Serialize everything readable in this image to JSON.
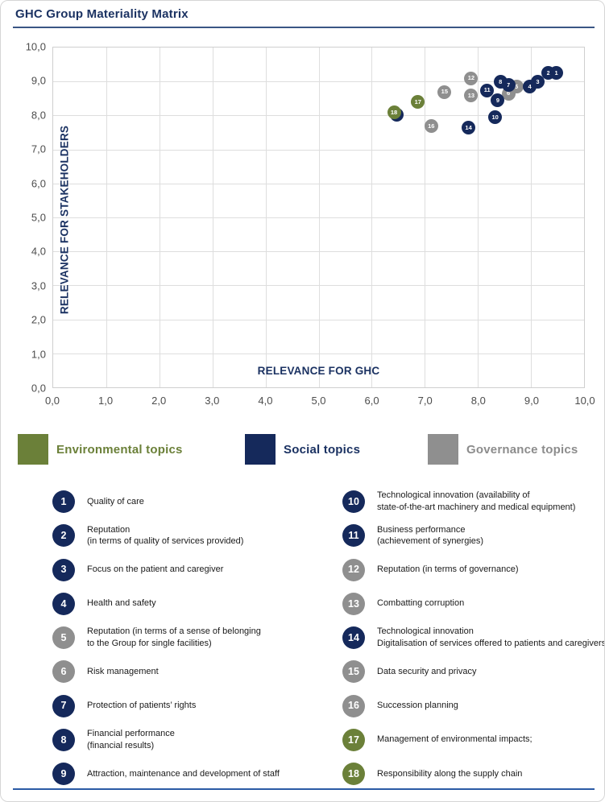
{
  "title": "GHC Group Materiality Matrix",
  "colors": {
    "environmental": "#6B8039",
    "social": "#15295B",
    "governance": "#8F8F8F",
    "legend_text": {
      "environmental": "#6B8039",
      "social": "#1B3262",
      "governance": "#8C8C8C"
    },
    "axis_title_text": "#1B3262",
    "tick_text": "#4D4D4D",
    "title_rule": "#3A5684",
    "bottom_rule": "#2B5AA5"
  },
  "chart_data": {
    "type": "scatter",
    "title": "GHC Group Materiality Matrix",
    "xlabel": "RELEVANCE FOR GHC",
    "ylabel": "RELEVANCE FOR STAKEHOLDERS",
    "xlim": [
      0,
      10
    ],
    "ylim": [
      0,
      10
    ],
    "grid": true,
    "tick_interval": 1,
    "x_tick_labels": [
      "0,0",
      "1,0",
      "2,0",
      "3,0",
      "4,0",
      "5,0",
      "6,0",
      "7,0",
      "8,0",
      "9,0",
      "10,0"
    ],
    "y_tick_labels": [
      "0,0",
      "1,0",
      "2,0",
      "3,0",
      "4,0",
      "5,0",
      "6,0",
      "7,0",
      "8,0",
      "9,0",
      "10,0"
    ],
    "series": [
      {
        "name": "Governance topics",
        "category": "governance",
        "points": [
          {
            "id": 16,
            "x": 7.1,
            "y": 7.7
          },
          {
            "id": 15,
            "x": 7.35,
            "y": 8.7
          },
          {
            "id": 13,
            "x": 7.85,
            "y": 8.6
          },
          {
            "id": 12,
            "x": 7.85,
            "y": 9.1
          },
          {
            "id": 6,
            "x": 8.55,
            "y": 8.65
          },
          {
            "id": 5,
            "x": 8.7,
            "y": 8.85
          }
        ]
      },
      {
        "name": "Social topics",
        "category": "social",
        "points": [
          {
            "id": 14,
            "x": 7.8,
            "y": 7.65
          },
          {
            "id": 11,
            "x": 8.15,
            "y": 8.75
          },
          {
            "id": 10,
            "x": 8.3,
            "y": 7.95
          },
          {
            "id": 9,
            "x": 8.35,
            "y": 8.45
          },
          {
            "id": 7,
            "x": 8.55,
            "y": 8.9
          },
          {
            "id": 8,
            "x": 8.4,
            "y": 9.0
          },
          {
            "id": 4,
            "x": 8.95,
            "y": 8.85
          },
          {
            "id": 3,
            "x": 9.1,
            "y": 9.0
          },
          {
            "id": 2,
            "x": 9.3,
            "y": 9.25
          },
          {
            "id": 1,
            "x": 9.45,
            "y": 9.25
          },
          {
            "id": "",
            "x": 6.45,
            "y": 8.03,
            "note": "unlabeled marker partially hidden behind point 18"
          }
        ]
      },
      {
        "name": "Environmental topics",
        "category": "environmental",
        "points": [
          {
            "id": 18,
            "x": 6.4,
            "y": 8.1
          },
          {
            "id": 17,
            "x": 6.85,
            "y": 8.4
          }
        ]
      }
    ]
  },
  "legend": [
    {
      "label": "Environmental topics",
      "category": "environmental"
    },
    {
      "label": "Social topics",
      "category": "social"
    },
    {
      "label": "Governance topics",
      "category": "governance"
    }
  ],
  "topics": {
    "left": [
      {
        "id": 1,
        "category": "social",
        "lines": [
          "Quality of care"
        ]
      },
      {
        "id": 2,
        "category": "social",
        "lines": [
          "Reputation",
          "(in terms of quality of services provided)"
        ]
      },
      {
        "id": 3,
        "category": "social",
        "lines": [
          "Focus on the patient and caregiver"
        ]
      },
      {
        "id": 4,
        "category": "social",
        "lines": [
          "Health and safety"
        ]
      },
      {
        "id": 5,
        "category": "governance",
        "lines": [
          "Reputation (in terms of a sense of belonging",
          "to the Group for single facilities)"
        ]
      },
      {
        "id": 6,
        "category": "governance",
        "lines": [
          "Risk management"
        ]
      },
      {
        "id": 7,
        "category": "social",
        "lines": [
          "Protection of patients’ rights"
        ]
      },
      {
        "id": 8,
        "category": "social",
        "lines": [
          "Financial performance",
          "(financial results)"
        ]
      },
      {
        "id": 9,
        "category": "social",
        "lines": [
          "Attraction, maintenance and development of staff"
        ]
      }
    ],
    "right": [
      {
        "id": 10,
        "category": "social",
        "lines": [
          "Technological innovation (availability of",
          "state-of-the-art machinery and medical equipment)"
        ]
      },
      {
        "id": 11,
        "category": "social",
        "lines": [
          "Business performance",
          "(achievement of synergies)"
        ]
      },
      {
        "id": 12,
        "category": "governance",
        "lines": [
          "Reputation (in terms of governance)"
        ]
      },
      {
        "id": 13,
        "category": "governance",
        "lines": [
          "Combatting corruption"
        ]
      },
      {
        "id": 14,
        "category": "social",
        "lines": [
          "Technological innovation",
          "Digitalisation of services offered to patients and caregivers"
        ]
      },
      {
        "id": 15,
        "category": "governance",
        "lines": [
          "Data security and privacy"
        ]
      },
      {
        "id": 16,
        "category": "governance",
        "lines": [
          "Succession planning"
        ]
      },
      {
        "id": 17,
        "category": "environmental",
        "lines": [
          "Management of environmental impacts;"
        ]
      },
      {
        "id": 18,
        "category": "environmental",
        "lines": [
          "Responsibility along the supply chain"
        ]
      }
    ]
  }
}
